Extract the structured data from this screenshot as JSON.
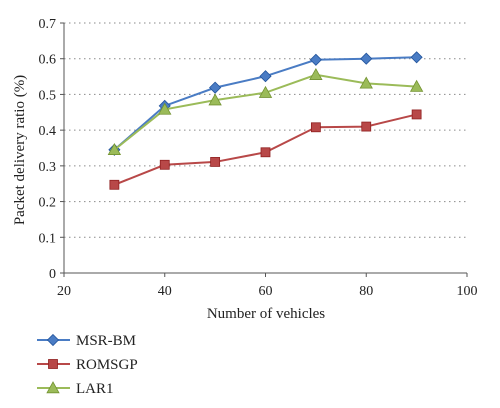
{
  "chart_data": {
    "type": "line",
    "title": "",
    "xlabel": "Number of vehicles",
    "ylabel": "Packet delivery ratio (%)",
    "xlim": [
      20,
      100
    ],
    "ylim": [
      0,
      0.7
    ],
    "x_ticks": [
      "20",
      "40",
      "60",
      "80",
      "100"
    ],
    "y_ticks": [
      "0",
      "0.1",
      "0.2",
      "0.3",
      "0.4",
      "0.5",
      "0.6",
      "0.7"
    ],
    "grid": "horizontal-dotted",
    "legend_position": "bottom-left",
    "x": [
      30,
      40,
      50,
      60,
      70,
      80,
      90
    ],
    "series": [
      {
        "name": "MSR-BM",
        "marker": "diamond",
        "color": "#4a7cc4",
        "values": [
          0.345,
          0.468,
          0.519,
          0.551,
          0.597,
          0.6,
          0.604
        ]
      },
      {
        "name": "ROMSGP",
        "marker": "square",
        "color": "#b84848",
        "values": [
          0.247,
          0.303,
          0.311,
          0.338,
          0.408,
          0.41,
          0.444
        ]
      },
      {
        "name": "LAR1",
        "marker": "triangle",
        "color": "#9bbb59",
        "values": [
          0.345,
          0.458,
          0.484,
          0.505,
          0.555,
          0.531,
          0.522
        ]
      }
    ]
  }
}
